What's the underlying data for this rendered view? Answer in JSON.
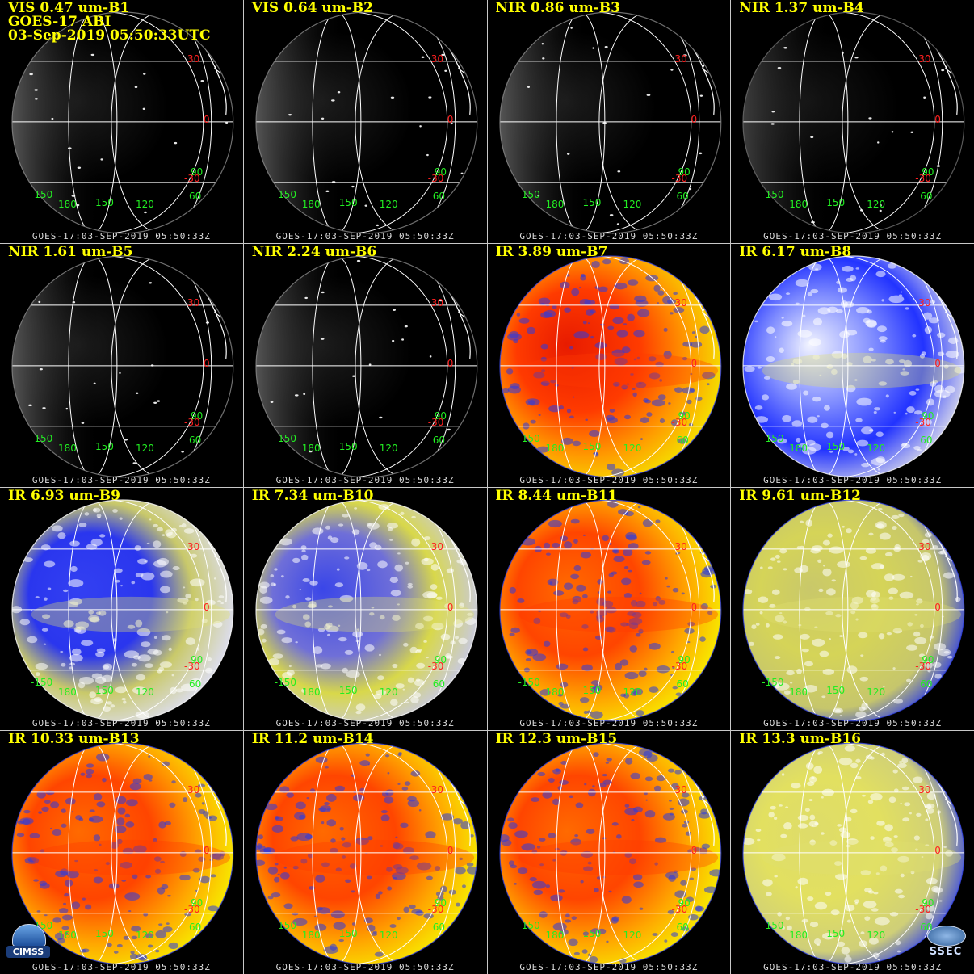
{
  "header": {
    "satellite_line": "GOES-17 ABI",
    "timestamp_line": "03-Sep-2019 05:50:33UTC"
  },
  "footer_text": "GOES-17:03-SEP-2019 05:50:33Z",
  "grid_labels": {
    "lat_30": "30",
    "lat_0": "0",
    "lat_neg30": "-30",
    "lon_neg150": "-150",
    "lon_180": "180",
    "lon_150": "150",
    "lon_120": "120",
    "lon_60": "60",
    "lon_90": "90"
  },
  "panels": [
    {
      "title": "VIS 0.47 um-B1",
      "palette": "visible"
    },
    {
      "title": "VIS 0.64 um-B2",
      "palette": "visible"
    },
    {
      "title": "NIR 0.86 um-B3",
      "palette": "visible"
    },
    {
      "title": "NIR 1.37 um-B4",
      "palette": "visible-dim"
    },
    {
      "title": "NIR 1.61 um-B5",
      "palette": "visible"
    },
    {
      "title": "NIR 2.24 um-B6",
      "palette": "visible"
    },
    {
      "title": "IR 3.89 um-B7",
      "palette": "ir-red"
    },
    {
      "title": "IR 6.17 um-B8",
      "palette": "wv-white"
    },
    {
      "title": "IR 6.93 um-B9",
      "palette": "wv-blue"
    },
    {
      "title": "IR 7.34 um-B10",
      "palette": "wv-yellow"
    },
    {
      "title": "IR 8.44 um-B11",
      "palette": "ir-orange"
    },
    {
      "title": "IR 9.61 um-B12",
      "palette": "ozone"
    },
    {
      "title": "IR 10.33 um-B13",
      "palette": "ir-orange"
    },
    {
      "title": "IR 11.2 um-B14",
      "palette": "ir-orange"
    },
    {
      "title": "IR 12.3 um-B15",
      "palette": "ir-orange"
    },
    {
      "title": "IR 13.3 um-B16",
      "palette": "co2"
    }
  ],
  "logos": {
    "left": "CIMSS",
    "right": "SSEC"
  },
  "colors": {
    "title": "#ffff00",
    "latitude_label": "#ff2020",
    "longitude_label": "#22ee22",
    "graticule": "#ffffff",
    "panel_border": "#c8c8c8"
  }
}
